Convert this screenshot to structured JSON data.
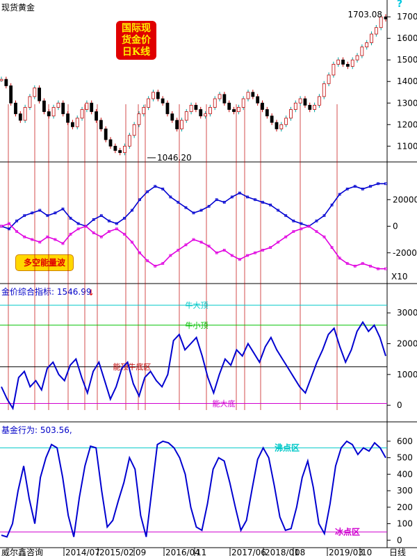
{
  "header": {
    "title": "现货黄金",
    "help_icon": "question-mark-icon"
  },
  "badge": {
    "line1": "国际现",
    "line2": "货金价",
    "line3": "日K线"
  },
  "energy_badge": "多空能量波",
  "chart_data": [
    {
      "type": "candlestick",
      "title": "现货黄金",
      "y_ticks": [
        1100,
        1200,
        1300,
        1400,
        1500,
        1600,
        1700
      ],
      "ylim": [
        1030,
        1720
      ],
      "annotations": {
        "high": "1703.08",
        "low": "1046.20"
      },
      "series": [
        {
          "values": [
            1410,
            1380,
            1300,
            1250,
            1220,
            1280,
            1330,
            1370,
            1310,
            1260,
            1240,
            1280,
            1300,
            1250,
            1210,
            1190,
            1230,
            1270,
            1300,
            1260,
            1220,
            1180,
            1130,
            1100,
            1080,
            1070,
            1100,
            1150,
            1200,
            1250,
            1280,
            1320,
            1350,
            1320,
            1300,
            1250,
            1220,
            1180,
            1220,
            1260,
            1290,
            1270,
            1240,
            1250,
            1280,
            1320,
            1340,
            1300,
            1270,
            1260,
            1280,
            1320,
            1350,
            1330,
            1300,
            1270,
            1240,
            1210,
            1180,
            1200,
            1230,
            1270,
            1300,
            1320,
            1290,
            1270,
            1290,
            1330,
            1390,
            1430,
            1480,
            1500,
            1480,
            1470,
            1500,
            1520,
            1560,
            1580,
            1620,
            1650,
            1700,
            1690
          ]
        }
      ]
    },
    {
      "type": "line",
      "title": "多空能量波",
      "y_ticks": [
        20000,
        0,
        -20000
      ],
      "multiplier": "X10",
      "series": [
        {
          "name": "blue",
          "values": [
            0,
            -2,
            4,
            8,
            10,
            12,
            8,
            10,
            13,
            6,
            2,
            0,
            5,
            8,
            4,
            2,
            6,
            12,
            20,
            26,
            30,
            28,
            22,
            18,
            14,
            10,
            12,
            15,
            20,
            18,
            22,
            25,
            22,
            20,
            18,
            16,
            12,
            8,
            4,
            2,
            0,
            4,
            8,
            16,
            24,
            28,
            30,
            28,
            30,
            32,
            32
          ]
        },
        {
          "name": "magenta",
          "values": [
            0,
            2,
            -4,
            -8,
            -10,
            -12,
            -8,
            -10,
            -13,
            -6,
            -2,
            0,
            -5,
            -8,
            -4,
            -2,
            -6,
            -12,
            -20,
            -26,
            -30,
            -28,
            -22,
            -18,
            -14,
            -10,
            -12,
            -15,
            -20,
            -18,
            -22,
            -25,
            -22,
            -20,
            -18,
            -16,
            -12,
            -8,
            -4,
            -2,
            0,
            -4,
            -8,
            -16,
            -24,
            -28,
            -30,
            -28,
            -30,
            -32,
            -32
          ]
        }
      ]
    },
    {
      "type": "line",
      "title": "金价综合指标",
      "value_label": "1546.99",
      "y_ticks": [
        0,
        1000,
        2000,
        3000
      ],
      "reference_lines": [
        {
          "label": "牛大顶",
          "value": 3250,
          "color": "#00c8c8"
        },
        {
          "label": "牛小顶",
          "value": 2600,
          "color": "#00c000"
        },
        {
          "label": "能顶牛底区",
          "value": 1250,
          "color": "#000000"
        },
        {
          "label": "能大底",
          "value": 60,
          "color": "#d000d0"
        }
      ],
      "series": [
        {
          "values": [
            600,
            200,
            -100,
            900,
            1100,
            600,
            800,
            500,
            1200,
            1400,
            1000,
            800,
            1300,
            1500,
            900,
            400,
            1100,
            1400,
            800,
            200,
            600,
            1200,
            1400,
            700,
            300,
            900,
            1100,
            800,
            600,
            1000,
            2100,
            2300,
            1800,
            2000,
            2200,
            1600,
            900,
            400,
            1000,
            1500,
            1300,
            1800,
            1600,
            2000,
            1700,
            1400,
            1900,
            2200,
            1800,
            1500,
            1200,
            900,
            600,
            400,
            900,
            1400,
            1800,
            2300,
            2500,
            1900,
            1400,
            1800,
            2400,
            2700,
            2400,
            2600,
            2200,
            1600
          ]
        }
      ]
    },
    {
      "type": "line",
      "title": "基金行为",
      "value_label": "503.56",
      "y_ticks": [
        0,
        100,
        200,
        300,
        400,
        500,
        600
      ],
      "reference_lines": [
        {
          "label": "沸点区",
          "value": 560,
          "color": "#00c8c8"
        },
        {
          "label": "冰点区",
          "value": 50,
          "color": "#d000d0"
        }
      ],
      "series": [
        {
          "values": [
            30,
            20,
            100,
            300,
            450,
            250,
            100,
            380,
            500,
            580,
            560,
            380,
            150,
            20,
            260,
            450,
            570,
            560,
            300,
            80,
            120,
            240,
            350,
            500,
            430,
            150,
            20,
            300,
            580,
            600,
            590,
            560,
            500,
            400,
            200,
            80,
            60,
            220,
            430,
            500,
            480,
            350,
            200,
            60,
            120,
            310,
            490,
            560,
            500,
            330,
            140,
            60,
            70,
            200,
            380,
            480,
            320,
            100,
            40,
            220,
            450,
            560,
            600,
            580,
            520,
            560,
            540,
            590,
            560,
            500
          ]
        }
      ]
    }
  ],
  "x_axis": {
    "labels": [
      "威尔鑫咨询",
      "2014/07",
      "2015/02",
      "09",
      "2016/04",
      "11",
      "2017/06",
      "2018/01",
      "08",
      "2019/03",
      "10"
    ],
    "period": "日线"
  }
}
